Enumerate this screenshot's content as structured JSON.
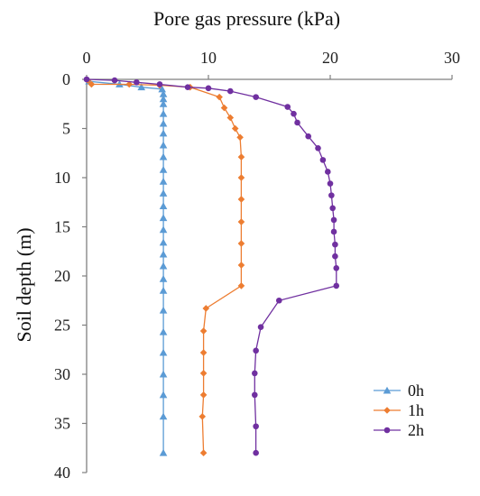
{
  "chart_data": {
    "type": "scatter",
    "title": "",
    "xlabel": "Pore gas pressure (kPa)",
    "ylabel": "Soil depth (m)",
    "xlim": [
      0,
      30
    ],
    "ylim": [
      0,
      40
    ],
    "y_inverted": true,
    "x_axis_position": "top",
    "xticks": [
      0,
      10,
      20,
      30
    ],
    "yticks": [
      0,
      5,
      10,
      15,
      20,
      25,
      30,
      35,
      40
    ],
    "grid": false,
    "legend_position": "bottom-right",
    "series": [
      {
        "name": "0h",
        "color": "#5B9BD5",
        "marker": "triangle",
        "points": [
          [
            0.2,
            0.2
          ],
          [
            2.7,
            0.5
          ],
          [
            4.5,
            0.8
          ],
          [
            6.2,
            1.0
          ],
          [
            6.3,
            1.5
          ],
          [
            6.3,
            2.0
          ],
          [
            6.3,
            2.5
          ],
          [
            6.3,
            3.5
          ],
          [
            6.3,
            4.5
          ],
          [
            6.3,
            5.5
          ],
          [
            6.3,
            6.7
          ],
          [
            6.3,
            7.9
          ],
          [
            6.3,
            9.2
          ],
          [
            6.3,
            10.4
          ],
          [
            6.3,
            11.6
          ],
          [
            6.3,
            12.9
          ],
          [
            6.3,
            14.1
          ],
          [
            6.3,
            15.3
          ],
          [
            6.3,
            16.6
          ],
          [
            6.3,
            17.8
          ],
          [
            6.3,
            19.0
          ],
          [
            6.3,
            20.3
          ],
          [
            6.3,
            21.5
          ],
          [
            6.3,
            23.5
          ],
          [
            6.3,
            25.7
          ],
          [
            6.3,
            27.8
          ],
          [
            6.3,
            30.0
          ],
          [
            6.3,
            32.1
          ],
          [
            6.3,
            34.3
          ],
          [
            6.3,
            38.0
          ]
        ]
      },
      {
        "name": "1h",
        "color": "#ED7D31",
        "marker": "diamond",
        "points": [
          [
            0.1,
            0.1
          ],
          [
            0.4,
            0.5
          ],
          [
            3.5,
            0.5
          ],
          [
            6.0,
            0.6
          ],
          [
            8.5,
            0.8
          ],
          [
            10.9,
            1.8
          ],
          [
            11.3,
            2.9
          ],
          [
            11.8,
            3.9
          ],
          [
            12.2,
            5.0
          ],
          [
            12.6,
            5.9
          ],
          [
            12.7,
            7.9
          ],
          [
            12.7,
            10.0
          ],
          [
            12.7,
            12.2
          ],
          [
            12.7,
            14.5
          ],
          [
            12.7,
            16.7
          ],
          [
            12.7,
            18.9
          ],
          [
            12.7,
            21.0
          ],
          [
            9.8,
            23.3
          ],
          [
            9.6,
            25.6
          ],
          [
            9.6,
            27.8
          ],
          [
            9.6,
            29.9
          ],
          [
            9.6,
            32.1
          ],
          [
            9.5,
            34.3
          ],
          [
            9.6,
            38.0
          ]
        ]
      },
      {
        "name": "2h",
        "color": "#7030A0",
        "marker": "circle",
        "points": [
          [
            0.0,
            0.0
          ],
          [
            2.3,
            0.1
          ],
          [
            4.1,
            0.3
          ],
          [
            6.0,
            0.5
          ],
          [
            8.3,
            0.8
          ],
          [
            10.0,
            0.9
          ],
          [
            11.8,
            1.2
          ],
          [
            13.9,
            1.8
          ],
          [
            16.5,
            2.8
          ],
          [
            17.0,
            3.5
          ],
          [
            17.3,
            4.4
          ],
          [
            18.2,
            5.8
          ],
          [
            19.0,
            7.0
          ],
          [
            19.4,
            8.2
          ],
          [
            19.8,
            9.4
          ],
          [
            20.0,
            10.6
          ],
          [
            20.1,
            11.8
          ],
          [
            20.2,
            13.1
          ],
          [
            20.3,
            14.3
          ],
          [
            20.3,
            15.5
          ],
          [
            20.4,
            16.8
          ],
          [
            20.4,
            18.0
          ],
          [
            20.5,
            19.2
          ],
          [
            20.5,
            21.0
          ],
          [
            15.8,
            22.5
          ],
          [
            14.3,
            25.2
          ],
          [
            13.9,
            27.6
          ],
          [
            13.8,
            29.9
          ],
          [
            13.8,
            32.1
          ],
          [
            13.9,
            35.3
          ],
          [
            13.9,
            38.0
          ]
        ]
      }
    ]
  }
}
